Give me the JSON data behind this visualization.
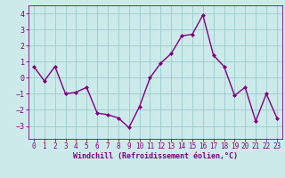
{
  "x": [
    0,
    1,
    2,
    3,
    4,
    5,
    6,
    7,
    8,
    9,
    10,
    11,
    12,
    13,
    14,
    15,
    16,
    17,
    18,
    19,
    20,
    21,
    22,
    23
  ],
  "y": [
    0.7,
    -0.2,
    0.7,
    -1.0,
    -0.9,
    -0.6,
    -2.2,
    -2.3,
    -2.5,
    -3.1,
    -1.8,
    0.0,
    0.9,
    1.5,
    2.6,
    2.7,
    3.9,
    1.4,
    0.7,
    -1.1,
    -0.6,
    -2.7,
    -1.0,
    -2.5
  ],
  "line_color": "#800080",
  "marker": "D",
  "marker_size": 2.0,
  "line_width": 1.0,
  "bg_color": "#cceaea",
  "grid_color": "#99cccc",
  "xlabel": "Windchill (Refroidissement éolien,°C)",
  "xlabel_color": "#800080",
  "tick_color": "#800080",
  "ylim": [
    -3.8,
    4.5
  ],
  "xlim": [
    -0.5,
    23.5
  ],
  "yticks": [
    -3,
    -2,
    -1,
    0,
    1,
    2,
    3,
    4
  ],
  "xticks": [
    0,
    1,
    2,
    3,
    4,
    5,
    6,
    7,
    8,
    9,
    10,
    11,
    12,
    13,
    14,
    15,
    16,
    17,
    18,
    19,
    20,
    21,
    22,
    23
  ],
  "tick_fontsize": 5.5,
  "xlabel_fontsize": 6.0,
  "xlabel_fontweight": "bold"
}
